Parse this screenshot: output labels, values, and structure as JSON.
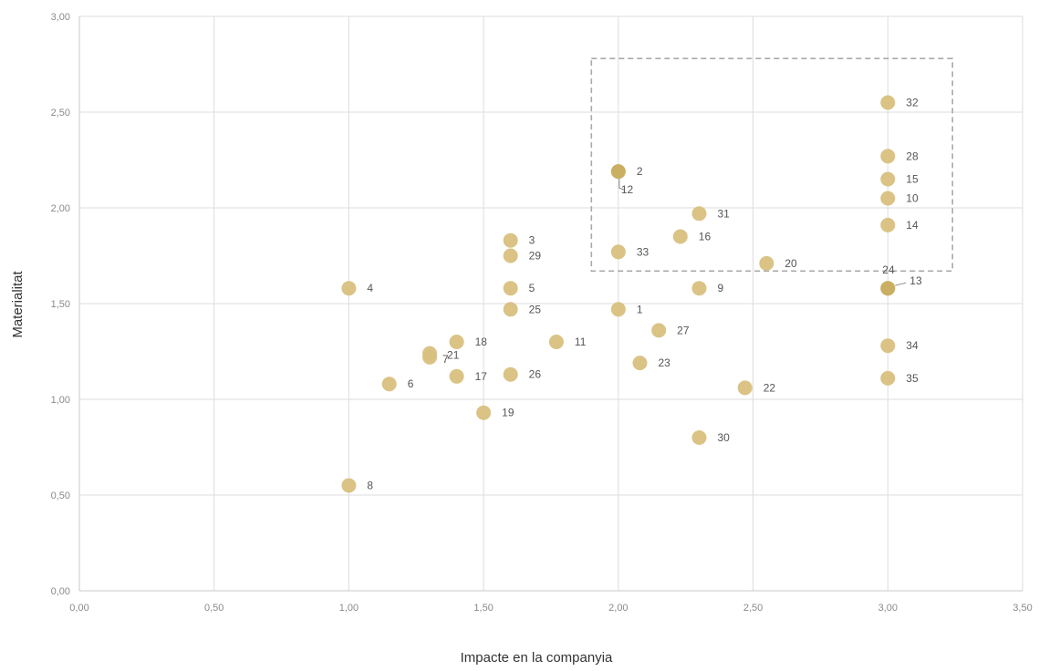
{
  "chart_data": {
    "type": "scatter",
    "xlabel": "Impacte en la companyia",
    "ylabel": "Materialitat",
    "xlim": [
      0,
      3.5
    ],
    "ylim": [
      0,
      3
    ],
    "grid": true,
    "xticks": [
      "0,00",
      "0,50",
      "1,00",
      "1,50",
      "2,00",
      "2,50",
      "3,00",
      "3,50"
    ],
    "yticks": [
      "0,00",
      "0,50",
      "1,00",
      "1,50",
      "2,00",
      "2,50",
      "3,00"
    ],
    "point_color": "#d8c07e",
    "point_color_dark": "#c9ad60",
    "grid_color": "#dddddd",
    "highlight_box": {
      "x": [
        1.9,
        3.24
      ],
      "y": [
        1.67,
        2.78
      ],
      "color": "#aaaaaa"
    },
    "points": [
      {
        "label": "1",
        "x": 2.0,
        "y": 1.47
      },
      {
        "label": "2",
        "x": 2.0,
        "y": 2.19
      },
      {
        "label": "3",
        "x": 1.6,
        "y": 1.83
      },
      {
        "label": "4",
        "x": 1.0,
        "y": 1.58
      },
      {
        "label": "5",
        "x": 1.6,
        "y": 1.58
      },
      {
        "label": "6",
        "x": 1.15,
        "y": 1.08
      },
      {
        "label": "7",
        "x": 1.3,
        "y": 1.22
      },
      {
        "label": "8",
        "x": 1.0,
        "y": 0.55
      },
      {
        "label": "9",
        "x": 2.3,
        "y": 1.58
      },
      {
        "label": "10",
        "x": 3.0,
        "y": 2.05
      },
      {
        "label": "11",
        "x": 1.77,
        "y": 1.3
      },
      {
        "label": "12",
        "x": 2.0,
        "y": 2.19
      },
      {
        "label": "13",
        "x": 3.0,
        "y": 1.58
      },
      {
        "label": "14",
        "x": 3.0,
        "y": 1.91
      },
      {
        "label": "15",
        "x": 3.0,
        "y": 2.15
      },
      {
        "label": "16",
        "x": 2.23,
        "y": 1.85
      },
      {
        "label": "17",
        "x": 1.4,
        "y": 1.12
      },
      {
        "label": "18",
        "x": 1.4,
        "y": 1.3
      },
      {
        "label": "19",
        "x": 1.5,
        "y": 0.93
      },
      {
        "label": "20",
        "x": 2.55,
        "y": 1.71
      },
      {
        "label": "21",
        "x": 1.3,
        "y": 1.24
      },
      {
        "label": "22",
        "x": 2.47,
        "y": 1.06
      },
      {
        "label": "23",
        "x": 2.08,
        "y": 1.19
      },
      {
        "label": "24",
        "x": 3.0,
        "y": 1.58
      },
      {
        "label": "25",
        "x": 1.6,
        "y": 1.47
      },
      {
        "label": "26",
        "x": 1.6,
        "y": 1.13
      },
      {
        "label": "27",
        "x": 2.15,
        "y": 1.36
      },
      {
        "label": "28",
        "x": 3.0,
        "y": 2.27
      },
      {
        "label": "29",
        "x": 1.6,
        "y": 1.75
      },
      {
        "label": "30",
        "x": 2.3,
        "y": 0.8
      },
      {
        "label": "31",
        "x": 2.3,
        "y": 1.97
      },
      {
        "label": "32",
        "x": 3.0,
        "y": 2.55
      },
      {
        "label": "33",
        "x": 2.0,
        "y": 1.77
      },
      {
        "label": "34",
        "x": 3.0,
        "y": 1.28
      },
      {
        "label": "35",
        "x": 3.0,
        "y": 1.11
      }
    ]
  }
}
